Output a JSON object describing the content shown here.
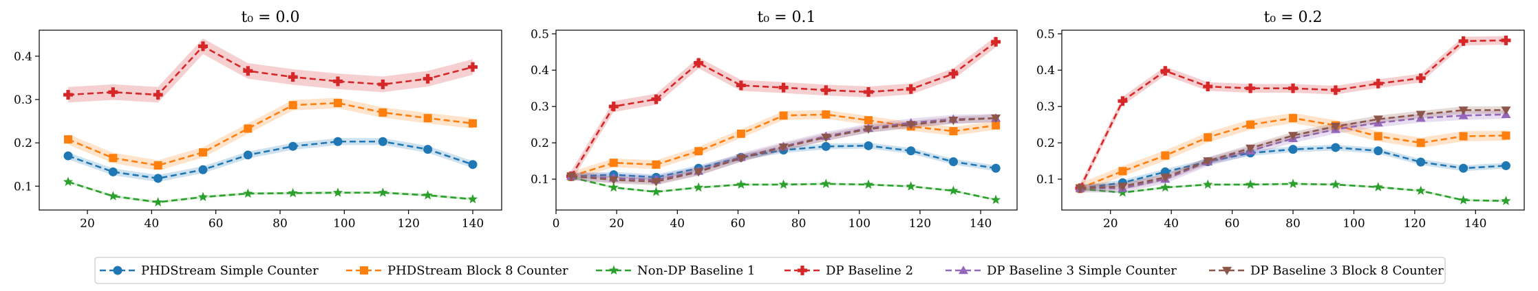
{
  "chart_data": {
    "type": "line",
    "legend": {
      "placement": "bottom-center",
      "entries": [
        {
          "name": "PHDStream Simple Counter",
          "color": "#1f77b4",
          "marker": "circle"
        },
        {
          "name": "PHDStream Block 8 Counter",
          "color": "#ff7f0e",
          "marker": "square"
        },
        {
          "name": "Non-DP Baseline 1",
          "color": "#2ca02c",
          "marker": "star"
        },
        {
          "name": "DP Baseline 2",
          "color": "#d62728",
          "marker": "plus"
        },
        {
          "name": "DP Baseline 3 Simple Counter",
          "color": "#9467bd",
          "marker": "triangle-up"
        },
        {
          "name": "DP Baseline 3 Block 8 Counter",
          "color": "#8c564b",
          "marker": "triangle-down"
        }
      ]
    },
    "panels": [
      {
        "title": "t₀ = 0.0",
        "xlim": [
          5,
          149
        ],
        "ylim": [
          0.045,
          0.46
        ],
        "xticks": [
          20,
          40,
          60,
          80,
          100,
          120,
          140
        ],
        "yticks": [
          0.1,
          0.2,
          0.3,
          0.4
        ],
        "x": [
          14,
          28,
          42,
          56,
          70,
          84,
          98,
          112,
          126,
          140
        ],
        "series": [
          {
            "name": "PHDStream Simple Counter",
            "values": [
              0.17,
              0.133,
              0.118,
              0.138,
              0.172,
              0.192,
              0.203,
              0.203,
              0.185,
              0.15
            ],
            "band": 0.008
          },
          {
            "name": "PHDStream Block 8 Counter",
            "values": [
              0.208,
              0.165,
              0.148,
              0.178,
              0.233,
              0.287,
              0.292,
              0.27,
              0.257,
              0.245
            ],
            "band": 0.012
          },
          {
            "name": "Non-DP Baseline 1",
            "values": [
              0.11,
              0.077,
              0.063,
              0.075,
              0.083,
              0.084,
              0.085,
              0.085,
              0.079,
              0.07
            ],
            "band": 0.003
          },
          {
            "name": "DP Baseline 2",
            "values": [
              0.311,
              0.317,
              0.311,
              0.423,
              0.366,
              0.352,
              0.342,
              0.335,
              0.348,
              0.375
            ],
            "band": 0.018
          }
        ]
      },
      {
        "title": "t₀ = 0.1",
        "xlim": [
          0,
          152
        ],
        "ylim": [
          0.015,
          0.51
        ],
        "xticks": [
          0,
          20,
          40,
          60,
          80,
          100,
          120,
          140
        ],
        "yticks": [
          0.1,
          0.2,
          0.3,
          0.4,
          0.5
        ],
        "x": [
          5,
          19,
          33,
          47,
          61,
          75,
          89,
          103,
          117,
          131,
          145
        ],
        "series": [
          {
            "name": "PHDStream Simple Counter",
            "values": [
              0.108,
              0.112,
              0.105,
              0.13,
              0.16,
              0.18,
              0.19,
              0.192,
              0.178,
              0.148,
              0.13
            ],
            "band": 0.008
          },
          {
            "name": "PHDStream Block 8 Counter",
            "values": [
              0.108,
              0.145,
              0.14,
              0.177,
              0.225,
              0.275,
              0.278,
              0.262,
              0.245,
              0.232,
              0.248
            ],
            "band": 0.012
          },
          {
            "name": "Non-DP Baseline 1",
            "values": [
              0.105,
              0.077,
              0.065,
              0.077,
              0.085,
              0.085,
              0.087,
              0.085,
              0.08,
              0.068,
              0.043
            ],
            "band": 0.003
          },
          {
            "name": "DP Baseline 2",
            "values": [
              0.108,
              0.3,
              0.32,
              0.42,
              0.358,
              0.352,
              0.345,
              0.34,
              0.348,
              0.39,
              0.478
            ],
            "band": 0.015
          },
          {
            "name": "DP Baseline 3 Simple Counter",
            "values": [
              0.108,
              0.103,
              0.098,
              0.122,
              0.16,
              0.19,
              0.218,
              0.24,
              0.255,
              0.265,
              0.268
            ],
            "band": 0.012
          },
          {
            "name": "DP Baseline 3 Block 8 Counter",
            "values": [
              0.108,
              0.098,
              0.093,
              0.12,
              0.158,
              0.188,
              0.215,
              0.238,
              0.25,
              0.262,
              0.268
            ],
            "band": 0.01
          }
        ]
      },
      {
        "title": "t₀ = 0.2",
        "xlim": [
          4,
          156
        ],
        "ylim": [
          0.015,
          0.51
        ],
        "xticks": [
          20,
          40,
          60,
          80,
          100,
          120,
          140
        ],
        "yticks": [
          0.1,
          0.2,
          0.3,
          0.4,
          0.5
        ],
        "x": [
          10,
          24,
          38,
          52,
          66,
          80,
          94,
          108,
          122,
          136,
          150
        ],
        "series": [
          {
            "name": "PHDStream Simple Counter",
            "values": [
              0.075,
              0.09,
              0.12,
              0.148,
              0.172,
              0.182,
              0.187,
              0.178,
              0.147,
              0.13,
              0.137
            ],
            "band": 0.008
          },
          {
            "name": "PHDStream Block 8 Counter",
            "values": [
              0.075,
              0.122,
              0.165,
              0.215,
              0.25,
              0.268,
              0.248,
              0.218,
              0.2,
              0.218,
              0.22
            ],
            "band": 0.014
          },
          {
            "name": "Non-DP Baseline 1",
            "values": [
              0.073,
              0.063,
              0.077,
              0.085,
              0.085,
              0.087,
              0.085,
              0.078,
              0.068,
              0.042,
              0.04
            ],
            "band": 0.003
          },
          {
            "name": "DP Baseline 2",
            "values": [
              0.075,
              0.315,
              0.398,
              0.355,
              0.35,
              0.35,
              0.345,
              0.363,
              0.378,
              0.48,
              0.482
            ],
            "band": 0.012
          },
          {
            "name": "DP Baseline 3 Simple Counter",
            "values": [
              0.075,
              0.075,
              0.1,
              0.148,
              0.178,
              0.212,
              0.237,
              0.255,
              0.268,
              0.275,
              0.278
            ],
            "band": 0.012
          },
          {
            "name": "DP Baseline 3 Block 8 Counter",
            "values": [
              0.075,
              0.08,
              0.105,
              0.15,
              0.185,
              0.22,
              0.245,
              0.265,
              0.278,
              0.29,
              0.29
            ],
            "band": 0.01
          }
        ]
      }
    ]
  }
}
